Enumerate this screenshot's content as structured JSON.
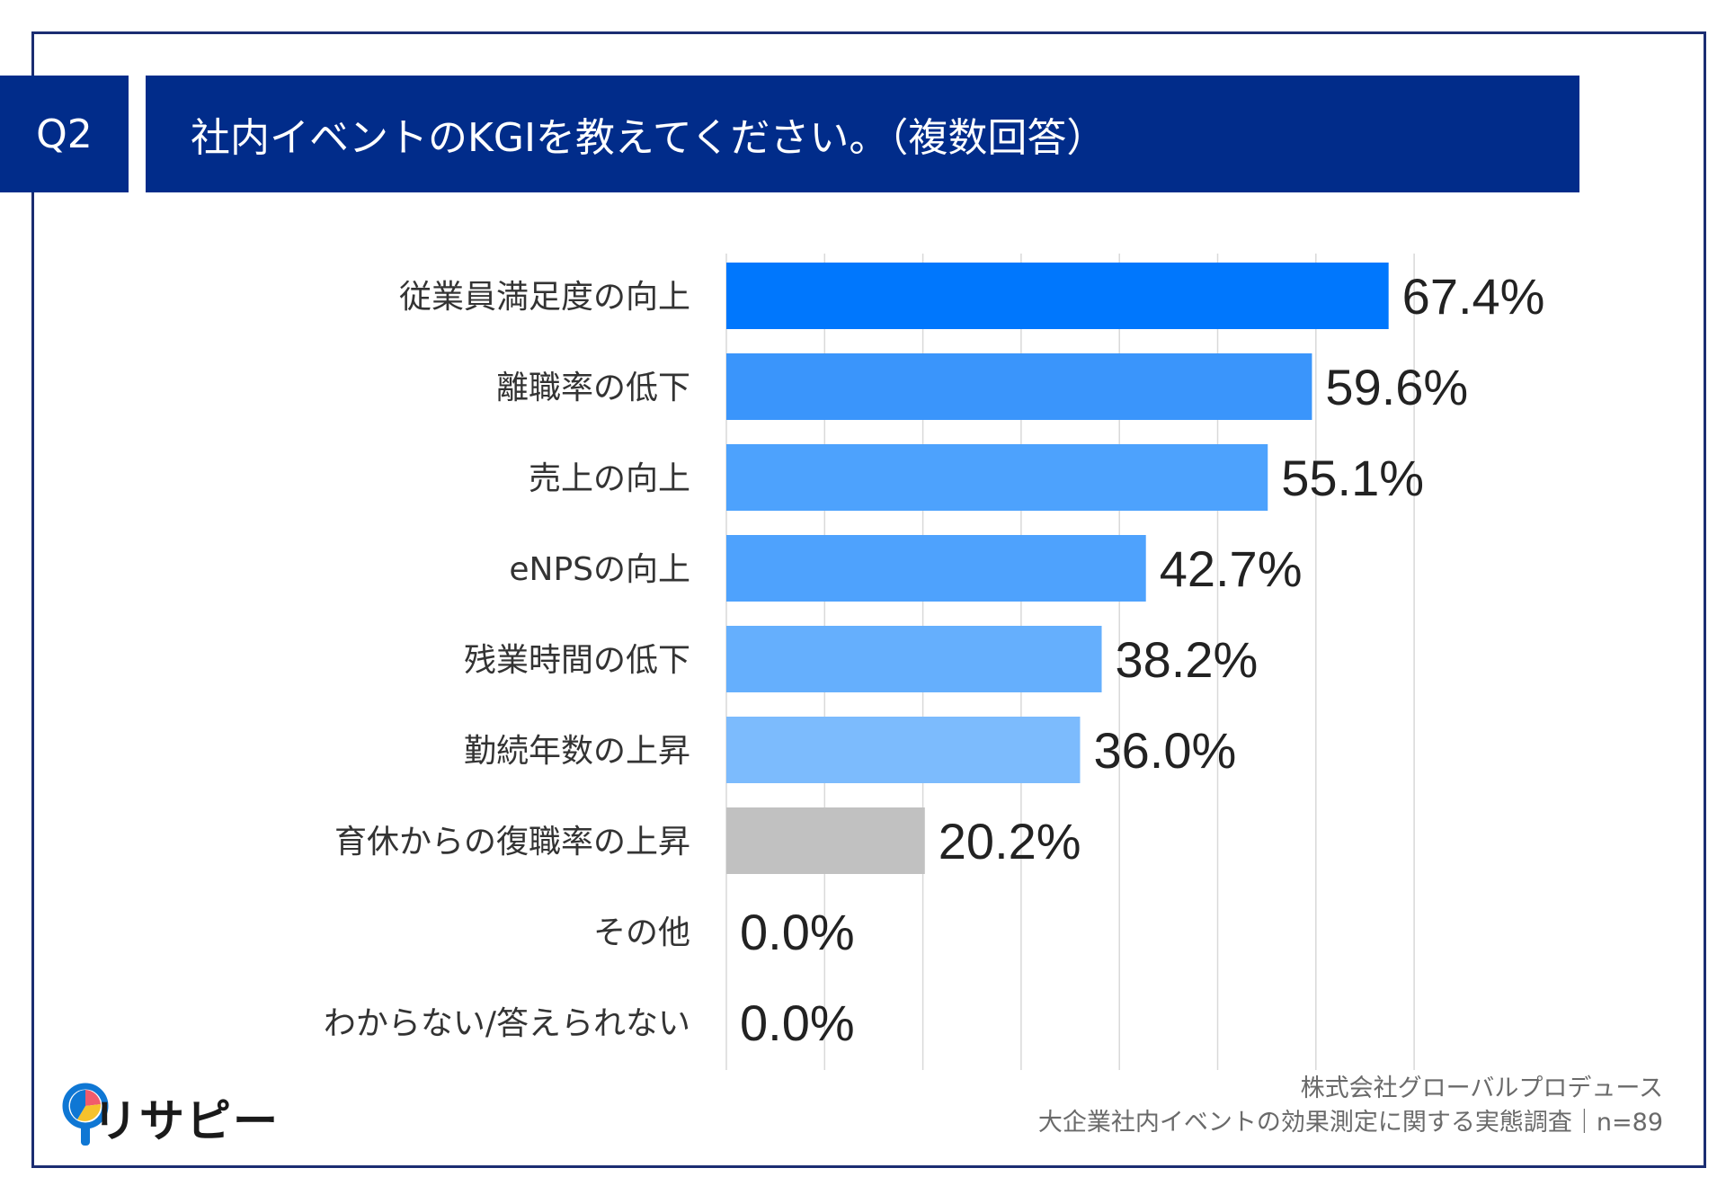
{
  "header": {
    "question_no": "Q2",
    "title": "社内イベントのKGIを教えてください。（複数回答）"
  },
  "chart_data": {
    "type": "bar",
    "orientation": "horizontal",
    "categories": [
      "従業員満足度の向上",
      "離職率の低下",
      "売上の向上",
      "eNPSの向上",
      "残業時間の低下",
      "勤続年数の上昇",
      "育休からの復職率の上昇",
      "その他",
      "わからない/答えられない"
    ],
    "values": [
      67.4,
      59.6,
      55.1,
      42.7,
      38.2,
      36.0,
      20.2,
      0.0,
      0.0
    ],
    "value_labels": [
      "67.4%",
      "59.6%",
      "55.1%",
      "42.7%",
      "38.2%",
      "36.0%",
      "20.2%",
      "0.0%",
      "0.0%"
    ],
    "bar_colors": [
      "#0077fd",
      "#3a95fb",
      "#4da2fd",
      "#4ea2fd",
      "#65affd",
      "#7cbbfd",
      "#c1c1c1",
      "#c1c1c1",
      "#c1c1c1"
    ],
    "xlim": [
      0,
      70
    ],
    "gridlines": [
      0,
      10,
      20,
      30,
      40,
      50,
      60,
      70
    ],
    "grid": true,
    "legend": "none"
  },
  "footer": {
    "source_line1": "株式会社グローバルプロデュース",
    "source_line2": "大企業社内イベントの効果測定に関する実態調査｜n=89",
    "logo_text": "リサピー"
  },
  "colors": {
    "header_bg": "#012c8a",
    "frame": "#1b2d72",
    "grid": "#d9d9d9",
    "label": "#333333",
    "value": "#222222"
  }
}
